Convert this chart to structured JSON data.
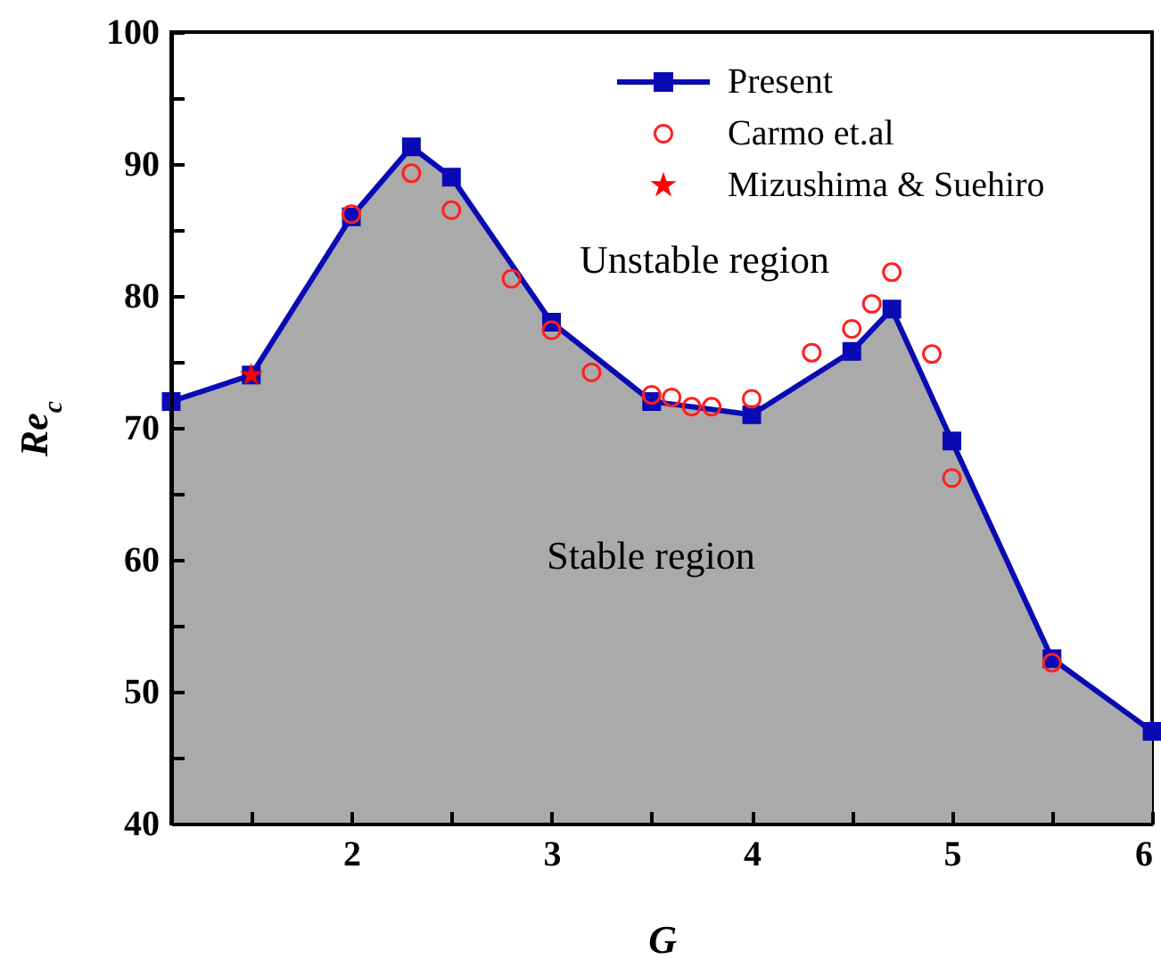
{
  "chart_data": {
    "type": "area",
    "xlabel": "G",
    "ylabel": "Re$_{c}$",
    "xlim": [
      1.1,
      6
    ],
    "ylim": [
      40,
      100
    ],
    "xticks": [
      {
        "value": 1.5,
        "label": null
      },
      2,
      {
        "value": 2.5,
        "label": null
      },
      3,
      {
        "value": 3.5,
        "label": null
      },
      4,
      {
        "value": 4.5,
        "label": null
      },
      5,
      {
        "value": 5.5,
        "label": null
      },
      6
    ],
    "yticks": [
      40,
      {
        "value": 45,
        "label": null
      },
      50,
      {
        "value": 55,
        "label": null
      },
      60,
      {
        "value": 65,
        "label": null
      },
      70,
      {
        "value": 75,
        "label": null
      },
      80,
      {
        "value": 85,
        "label": null
      },
      90,
      {
        "value": 95,
        "label": null
      },
      100
    ],
    "legend": "top right",
    "grid": false,
    "annotations": [
      "Unstable region",
      "Stable region"
    ],
    "series": [
      {
        "name": "Present",
        "marker": "square",
        "color": "#0a0ab4",
        "x": [
          1.1,
          1.5,
          2,
          2.3,
          2.5,
          3,
          3.5,
          4,
          4.5,
          4.7,
          5,
          5.5,
          6
        ],
        "values": [
          72,
          74,
          86,
          91.3,
          89,
          78,
          72,
          71,
          75.8,
          79,
          69,
          52.5,
          47
        ]
      },
      {
        "name": "Carmo et.al",
        "type": "scatter",
        "marker": "circle",
        "color": "#ff2020",
        "x": [
          2,
          2.3,
          2.5,
          2.8,
          3,
          3.2,
          3.5,
          3.6,
          3.7,
          3.8,
          4,
          4.3,
          4.5,
          4.6,
          4.7,
          4.9,
          5,
          5.5
        ],
        "values": [
          86.2,
          89.3,
          86.5,
          81.3,
          77.4,
          74.2,
          72.5,
          72.3,
          71.6,
          71.6,
          72.2,
          75.7,
          77.5,
          79.4,
          81.8,
          75.6,
          66.2,
          52.2
        ]
      },
      {
        "name": "Mizushima & Suehiro",
        "type": "scatter",
        "marker": "star",
        "color": "#ff0000",
        "x": [
          1.5
        ],
        "values": [
          74
        ]
      }
    ]
  }
}
